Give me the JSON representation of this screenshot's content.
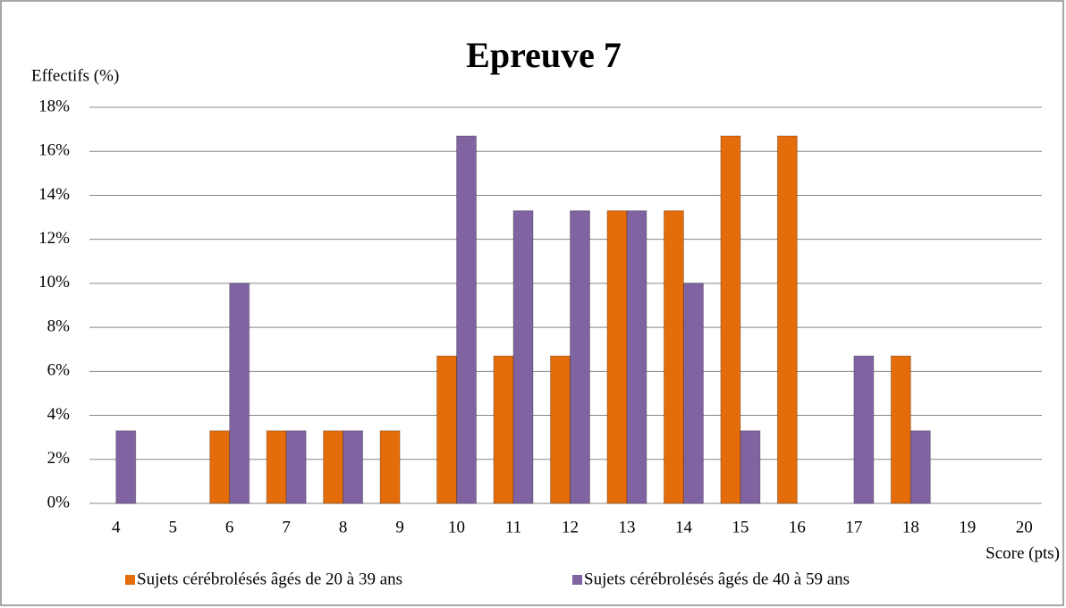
{
  "chart_data": {
    "type": "bar",
    "title": "Epreuve 7",
    "y_label": "Effectifs (%)",
    "x_label": "Score (pts)",
    "categories": [
      "4",
      "5",
      "6",
      "7",
      "8",
      "9",
      "10",
      "11",
      "12",
      "13",
      "14",
      "15",
      "16",
      "17",
      "18",
      "19",
      "20"
    ],
    "series": [
      {
        "name": "Sujets cérébrolésés âgés de 20 à 39 ans",
        "color": "#e46c0a",
        "values": [
          0,
          0,
          3.3,
          3.3,
          3.3,
          3.3,
          6.7,
          6.7,
          6.7,
          13.3,
          13.3,
          16.7,
          16.7,
          0,
          6.7,
          0,
          0
        ]
      },
      {
        "name": "Sujets cérébrolésés âgés de 40 à 59 ans",
        "color": "#8064a2",
        "values": [
          3.3,
          0,
          10,
          3.3,
          3.3,
          0,
          16.7,
          13.3,
          13.3,
          13.3,
          10,
          3.3,
          0,
          6.7,
          3.3,
          0,
          0
        ]
      }
    ],
    "ylim": [
      0,
      18
    ],
    "yticks": [
      {
        "value": 0,
        "label": "0%"
      },
      {
        "value": 2,
        "label": "2%"
      },
      {
        "value": 4,
        "label": "4%"
      },
      {
        "value": 6,
        "label": "6%"
      },
      {
        "value": 8,
        "label": "8%"
      },
      {
        "value": 10,
        "label": "10%"
      },
      {
        "value": 12,
        "label": "12%"
      },
      {
        "value": 14,
        "label": "14%"
      },
      {
        "value": 16,
        "label": "16%"
      },
      {
        "value": 18,
        "label": "18%"
      }
    ],
    "grid": true
  }
}
